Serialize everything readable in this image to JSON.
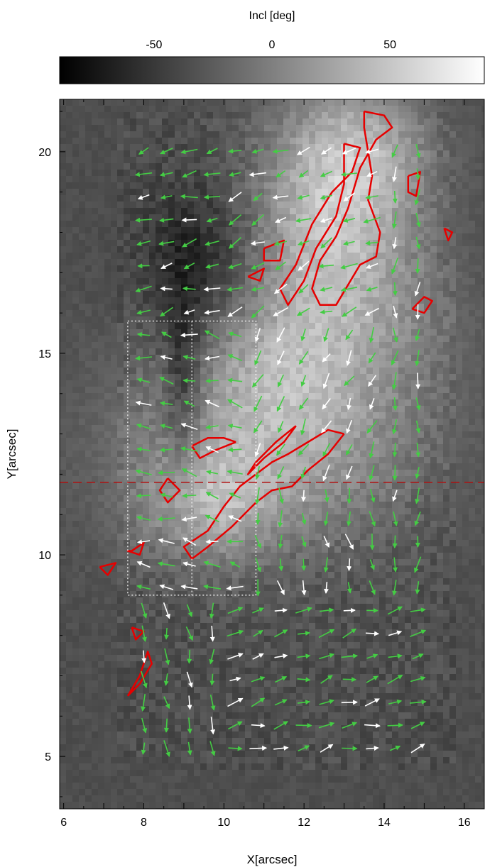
{
  "chart_data": {
    "type": "heatmap",
    "colorbar": {
      "label": "Incl [deg]",
      "ticks": [
        -50,
        0,
        50
      ],
      "range": [
        -90,
        90
      ],
      "colormap": "grayscale",
      "placement": "top"
    },
    "xlabel": "X[arcsec]",
    "ylabel": "Y[arcsec]",
    "xlim": [
      5.9,
      16.5
    ],
    "ylim": [
      3.7,
      21.3
    ],
    "xticks": [
      6,
      8,
      10,
      12,
      14,
      16
    ],
    "yticks": [
      5,
      10,
      15,
      20
    ],
    "colors": {
      "vector_green": "#44cc44",
      "vector_white": "#ffffff",
      "contour_red": "#e60000",
      "box": "#ffffff",
      "dashed_line": "#b01010"
    },
    "inclination_field": {
      "background_deg": -35,
      "blobs": [
        {
          "x": 12.6,
          "y": 18.0,
          "sx": 1.4,
          "sy": 2.2,
          "amp": 75
        },
        {
          "x": 13.6,
          "y": 20.0,
          "sx": 1.2,
          "sy": 1.2,
          "amp": 45
        },
        {
          "x": 11.2,
          "y": 12.8,
          "sx": 2.6,
          "sy": 1.8,
          "amp": 60
        },
        {
          "x": 9.6,
          "y": 11.2,
          "sx": 1.2,
          "sy": 1.0,
          "amp": 45
        },
        {
          "x": 11.4,
          "y": 14.8,
          "sx": 1.3,
          "sy": 1.2,
          "amp": 30
        },
        {
          "x": 9.0,
          "y": 14.2,
          "sx": 0.35,
          "sy": 1.8,
          "amp": -40
        },
        {
          "x": 9.4,
          "y": 17.4,
          "sx": 1.0,
          "sy": 1.3,
          "amp": -30
        },
        {
          "x": 14.6,
          "y": 16.0,
          "sx": 1.2,
          "sy": 1.5,
          "amp": 20
        }
      ]
    },
    "vector_grid": {
      "x_start": 8.0,
      "x_step": 0.57,
      "x_count": 13,
      "y_start": 5.2,
      "y_step": 0.57,
      "y_count": 27,
      "arrow_length_arcsec": 0.36,
      "direction_regions": [
        {
          "name": "northwest",
          "x": [
            7.6,
            10.2
          ],
          "y": [
            15.8,
            20.6
          ],
          "angle_deg": 195
        },
        {
          "name": "north-flow",
          "x": [
            10.2,
            14.0
          ],
          "y": [
            16.0,
            20.6
          ],
          "angle_deg": 205
        },
        {
          "name": "west",
          "x": [
            7.6,
            10.8
          ],
          "y": [
            9.0,
            15.8
          ],
          "angle_deg": 170
        },
        {
          "name": "central",
          "x": [
            10.8,
            14.0
          ],
          "y": [
            11.5,
            16.0
          ],
          "angle_deg": 240
        },
        {
          "name": "east-down",
          "x": [
            14.0,
            15.3
          ],
          "y": [
            9.5,
            20.6
          ],
          "angle_deg": 265
        },
        {
          "name": "south-mid",
          "x": [
            10.8,
            15.3
          ],
          "y": [
            9.0,
            11.5
          ],
          "angle_deg": 280
        },
        {
          "name": "southwest",
          "x": [
            7.6,
            10.2
          ],
          "y": [
            5.0,
            9.0
          ],
          "angle_deg": 275
        },
        {
          "name": "southeast",
          "x": [
            10.2,
            15.3
          ],
          "y": [
            5.0,
            9.0
          ],
          "angle_deg": 15
        }
      ]
    },
    "contours": [
      [
        [
          13.5,
          21.0
        ],
        [
          14.0,
          20.9
        ],
        [
          14.2,
          20.6
        ],
        [
          13.8,
          20.3
        ],
        [
          13.4,
          19.6
        ],
        [
          13.1,
          18.6
        ],
        [
          12.8,
          17.9
        ],
        [
          12.4,
          17.3
        ],
        [
          12.2,
          16.6
        ],
        [
          12.4,
          16.2
        ],
        [
          12.8,
          16.2
        ],
        [
          13.1,
          16.7
        ],
        [
          13.4,
          17.2
        ],
        [
          13.8,
          17.4
        ],
        [
          13.9,
          18.0
        ],
        [
          13.6,
          18.8
        ],
        [
          13.7,
          19.4
        ],
        [
          13.6,
          20.0
        ],
        [
          13.5,
          20.6
        ],
        [
          13.5,
          21.0
        ]
      ],
      [
        [
          13.0,
          20.2
        ],
        [
          13.4,
          20.1
        ],
        [
          13.2,
          19.5
        ],
        [
          12.7,
          19.0
        ],
        [
          12.2,
          18.2
        ],
        [
          11.8,
          17.2
        ],
        [
          11.4,
          16.6
        ],
        [
          11.6,
          16.2
        ],
        [
          12.0,
          16.8
        ],
        [
          12.3,
          17.6
        ],
        [
          12.8,
          18.4
        ],
        [
          13.0,
          19.2
        ],
        [
          13.0,
          20.2
        ]
      ],
      [
        [
          14.6,
          19.4
        ],
        [
          14.9,
          19.5
        ],
        [
          14.8,
          18.9
        ],
        [
          14.6,
          19.0
        ],
        [
          14.6,
          19.4
        ]
      ],
      [
        [
          15.5,
          18.1
        ],
        [
          15.7,
          18.0
        ],
        [
          15.6,
          17.8
        ],
        [
          15.5,
          18.1
        ]
      ],
      [
        [
          11.0,
          17.6
        ],
        [
          11.5,
          17.8
        ],
        [
          11.4,
          17.3
        ],
        [
          11.0,
          17.3
        ],
        [
          11.0,
          17.6
        ]
      ],
      [
        [
          10.6,
          16.9
        ],
        [
          11.0,
          17.1
        ],
        [
          10.9,
          16.8
        ],
        [
          10.6,
          16.9
        ]
      ],
      [
        [
          14.7,
          16.1
        ],
        [
          15.0,
          16.4
        ],
        [
          15.2,
          16.3
        ],
        [
          15.0,
          16.0
        ],
        [
          14.7,
          16.1
        ]
      ],
      [
        [
          13.0,
          13.0
        ],
        [
          12.6,
          12.5
        ],
        [
          12.1,
          12.1
        ],
        [
          11.7,
          11.7
        ],
        [
          11.2,
          11.6
        ],
        [
          10.8,
          11.3
        ],
        [
          10.2,
          10.7
        ],
        [
          9.6,
          10.2
        ],
        [
          9.2,
          9.9
        ],
        [
          9.0,
          10.2
        ],
        [
          9.6,
          10.6
        ],
        [
          10.0,
          11.2
        ],
        [
          10.4,
          11.7
        ],
        [
          10.8,
          12.0
        ],
        [
          11.2,
          12.3
        ],
        [
          11.6,
          12.5
        ],
        [
          12.1,
          12.8
        ],
        [
          12.6,
          13.1
        ],
        [
          13.0,
          13.0
        ]
      ],
      [
        [
          11.8,
          13.2
        ],
        [
          11.5,
          12.8
        ],
        [
          11.0,
          12.4
        ],
        [
          10.6,
          12.0
        ],
        [
          10.8,
          12.3
        ],
        [
          11.3,
          12.8
        ],
        [
          11.8,
          13.2
        ]
      ],
      [
        [
          10.3,
          12.8
        ],
        [
          9.8,
          12.6
        ],
        [
          9.4,
          12.4
        ],
        [
          9.2,
          12.7
        ],
        [
          9.6,
          12.9
        ],
        [
          10.0,
          12.9
        ],
        [
          10.3,
          12.8
        ]
      ],
      [
        [
          8.6,
          11.9
        ],
        [
          8.9,
          11.6
        ],
        [
          8.6,
          11.3
        ],
        [
          8.4,
          11.6
        ],
        [
          8.6,
          11.9
        ]
      ],
      [
        [
          7.7,
          10.1
        ],
        [
          8.0,
          10.3
        ],
        [
          7.9,
          10.0
        ],
        [
          7.6,
          10.1
        ],
        [
          7.7,
          10.1
        ]
      ],
      [
        [
          6.9,
          9.7
        ],
        [
          7.3,
          9.8
        ],
        [
          7.1,
          9.5
        ],
        [
          6.9,
          9.7
        ]
      ],
      [
        [
          7.7,
          8.2
        ],
        [
          8.0,
          8.1
        ],
        [
          7.8,
          7.9
        ],
        [
          7.7,
          8.2
        ]
      ],
      [
        [
          7.6,
          6.5
        ],
        [
          7.9,
          7.0
        ],
        [
          8.1,
          7.6
        ],
        [
          8.2,
          7.3
        ],
        [
          7.9,
          6.8
        ],
        [
          7.6,
          6.5
        ]
      ]
    ],
    "box": {
      "x": [
        7.6,
        10.8
      ],
      "y": [
        9.0,
        15.8
      ]
    },
    "inner_box": {
      "x": [
        9.2,
        10.8
      ],
      "y": [
        9.0,
        15.8
      ]
    },
    "dashed_line_y": 11.8
  }
}
